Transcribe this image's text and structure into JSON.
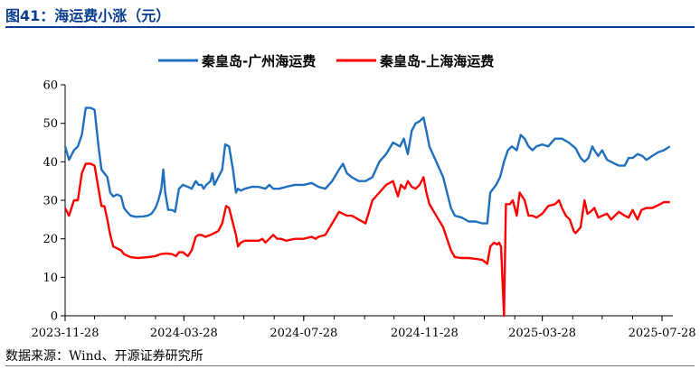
{
  "figure": {
    "title": "图41：海运费小涨（元）",
    "source": "数据来源：Wind、开源证券研究所"
  },
  "chart_data": {
    "type": "line",
    "xticks": [
      "2023-11-28",
      "2024-03-28",
      "2024-07-28",
      "2024-11-28",
      "2025-03-28",
      "2025-07-28"
    ],
    "x_range": [
      "2023-11-28",
      "2025-08-08"
    ],
    "ylim": [
      0,
      60
    ],
    "yticks": [
      "0",
      "10",
      "20",
      "30",
      "40",
      "50",
      "60"
    ],
    "grid": false,
    "legend_position": "top",
    "series": [
      {
        "name": "秦皇岛-广州海运费",
        "color": "#1f6fbf",
        "points": [
          [
            "2023-11-28",
            44
          ],
          [
            "2023-12-02",
            40.5
          ],
          [
            "2023-12-07",
            43
          ],
          [
            "2023-12-11",
            44
          ],
          [
            "2023-12-15",
            47
          ],
          [
            "2023-12-19",
            54
          ],
          [
            "2023-12-24",
            54
          ],
          [
            "2023-12-28",
            53.5
          ],
          [
            "2024-01-01",
            44
          ],
          [
            "2024-01-04",
            38
          ],
          [
            "2024-01-07",
            37
          ],
          [
            "2024-01-10",
            36
          ],
          [
            "2024-01-13",
            32
          ],
          [
            "2024-01-16",
            31
          ],
          [
            "2024-01-20",
            31.5
          ],
          [
            "2024-01-24",
            31
          ],
          [
            "2024-01-27",
            28
          ],
          [
            "2024-01-30",
            27
          ],
          [
            "2024-02-03",
            26
          ],
          [
            "2024-02-08",
            25.7
          ],
          [
            "2024-02-15",
            25.8
          ],
          [
            "2024-02-20",
            26
          ],
          [
            "2024-02-24",
            26.5
          ],
          [
            "2024-02-28",
            28
          ],
          [
            "2024-03-02",
            30
          ],
          [
            "2024-03-05",
            33
          ],
          [
            "2024-03-07",
            38
          ],
          [
            "2024-03-09",
            32
          ],
          [
            "2024-03-12",
            27.5
          ],
          [
            "2024-03-16",
            27.5
          ],
          [
            "2024-03-19",
            27
          ],
          [
            "2024-03-23",
            33
          ],
          [
            "2024-03-27",
            34
          ],
          [
            "2024-04-01",
            33.5
          ],
          [
            "2024-04-05",
            33
          ],
          [
            "2024-04-09",
            35
          ],
          [
            "2024-04-12",
            34
          ],
          [
            "2024-04-15",
            34
          ],
          [
            "2024-04-17",
            33
          ],
          [
            "2024-04-20",
            34
          ],
          [
            "2024-04-24",
            35
          ],
          [
            "2024-04-26",
            37
          ],
          [
            "2024-04-28",
            34
          ],
          [
            "2024-05-02",
            36
          ],
          [
            "2024-05-06",
            38
          ],
          [
            "2024-05-09",
            44.5
          ],
          [
            "2024-05-13",
            44
          ],
          [
            "2024-05-17",
            38
          ],
          [
            "2024-05-20",
            32
          ],
          [
            "2024-05-22",
            33
          ],
          [
            "2024-05-25",
            32.5
          ],
          [
            "2024-05-29",
            33
          ],
          [
            "2024-06-05",
            33.5
          ],
          [
            "2024-06-12",
            33.5
          ],
          [
            "2024-06-19",
            33
          ],
          [
            "2024-06-23",
            34
          ],
          [
            "2024-06-27",
            33
          ],
          [
            "2024-07-03",
            33
          ],
          [
            "2024-07-10",
            33.5
          ],
          [
            "2024-07-19",
            34
          ],
          [
            "2024-07-28",
            34
          ],
          [
            "2024-08-05",
            34.5
          ],
          [
            "2024-08-12",
            33.5
          ],
          [
            "2024-08-19",
            33
          ],
          [
            "2024-08-26",
            35
          ],
          [
            "2024-09-02",
            38
          ],
          [
            "2024-09-06",
            39.5
          ],
          [
            "2024-09-10",
            37
          ],
          [
            "2024-09-15",
            36
          ],
          [
            "2024-09-22",
            35
          ],
          [
            "2024-09-29",
            35
          ],
          [
            "2024-10-06",
            36
          ],
          [
            "2024-10-13",
            40
          ],
          [
            "2024-10-20",
            42
          ],
          [
            "2024-10-27",
            45
          ],
          [
            "2024-11-03",
            44
          ],
          [
            "2024-11-07",
            46
          ],
          [
            "2024-11-11",
            42
          ],
          [
            "2024-11-15",
            48
          ],
          [
            "2024-11-19",
            50
          ],
          [
            "2024-11-23",
            50.5
          ],
          [
            "2024-11-27",
            51.5
          ],
          [
            "2024-11-30",
            48
          ],
          [
            "2024-12-03",
            44
          ],
          [
            "2024-12-10",
            40
          ],
          [
            "2024-12-17",
            36
          ],
          [
            "2024-12-21",
            32
          ],
          [
            "2024-12-25",
            28
          ],
          [
            "2024-12-29",
            26
          ],
          [
            "2025-01-05",
            25.5
          ],
          [
            "2025-01-12",
            24.5
          ],
          [
            "2025-01-19",
            24.5
          ],
          [
            "2025-01-26",
            24
          ],
          [
            "2025-01-31",
            24
          ],
          [
            "2025-02-03",
            32
          ],
          [
            "2025-02-09",
            34
          ],
          [
            "2025-02-13",
            36
          ],
          [
            "2025-02-17",
            40
          ],
          [
            "2025-02-21",
            43
          ],
          [
            "2025-02-25",
            44
          ],
          [
            "2025-03-02",
            43
          ],
          [
            "2025-03-06",
            47
          ],
          [
            "2025-03-10",
            46
          ],
          [
            "2025-03-14",
            44
          ],
          [
            "2025-03-18",
            43
          ],
          [
            "2025-03-22",
            44
          ],
          [
            "2025-03-28",
            44.5
          ],
          [
            "2025-04-03",
            44
          ],
          [
            "2025-04-10",
            46
          ],
          [
            "2025-04-17",
            46
          ],
          [
            "2025-04-24",
            45
          ],
          [
            "2025-05-01",
            43.5
          ],
          [
            "2025-05-06",
            41
          ],
          [
            "2025-05-10",
            40
          ],
          [
            "2025-05-14",
            41
          ],
          [
            "2025-05-18",
            44
          ],
          [
            "2025-05-20",
            43
          ],
          [
            "2025-05-24",
            41.5
          ],
          [
            "2025-05-28",
            43
          ],
          [
            "2025-06-02",
            40.5
          ],
          [
            "2025-06-06",
            40
          ],
          [
            "2025-06-10",
            39.5
          ],
          [
            "2025-06-14",
            39
          ],
          [
            "2025-06-20",
            39
          ],
          [
            "2025-06-24",
            41
          ],
          [
            "2025-06-28",
            41
          ],
          [
            "2025-07-03",
            42
          ],
          [
            "2025-07-08",
            41.5
          ],
          [
            "2025-07-12",
            40.5
          ],
          [
            "2025-07-18",
            41.5
          ],
          [
            "2025-07-24",
            42.5
          ],
          [
            "2025-07-30",
            43
          ],
          [
            "2025-08-05",
            44
          ]
        ]
      },
      {
        "name": "秦皇岛-上海海运费",
        "color": "#ff0000",
        "points": [
          [
            "2023-11-28",
            28
          ],
          [
            "2023-12-02",
            26
          ],
          [
            "2023-12-07",
            30
          ],
          [
            "2023-12-11",
            30
          ],
          [
            "2023-12-15",
            37
          ],
          [
            "2023-12-19",
            39.5
          ],
          [
            "2023-12-24",
            39.5
          ],
          [
            "2023-12-28",
            39
          ],
          [
            "2024-01-01",
            33
          ],
          [
            "2024-01-04",
            28.5
          ],
          [
            "2024-01-07",
            28.5
          ],
          [
            "2024-01-10",
            25
          ],
          [
            "2024-01-13",
            21
          ],
          [
            "2024-01-16",
            18
          ],
          [
            "2024-01-20",
            17.5
          ],
          [
            "2024-01-24",
            17
          ],
          [
            "2024-01-27",
            16
          ],
          [
            "2024-02-03",
            15.2
          ],
          [
            "2024-02-10",
            15
          ],
          [
            "2024-02-20",
            15.2
          ],
          [
            "2024-02-28",
            15.5
          ],
          [
            "2024-03-04",
            16
          ],
          [
            "2024-03-10",
            16.2
          ],
          [
            "2024-03-16",
            16
          ],
          [
            "2024-03-20",
            15.5
          ],
          [
            "2024-03-23",
            16.5
          ],
          [
            "2024-03-27",
            16.5
          ],
          [
            "2024-04-01",
            15.5
          ],
          [
            "2024-04-05",
            17
          ],
          [
            "2024-04-09",
            20.5
          ],
          [
            "2024-04-12",
            21
          ],
          [
            "2024-04-15",
            21
          ],
          [
            "2024-04-19",
            20.5
          ],
          [
            "2024-04-24",
            21
          ],
          [
            "2024-04-28",
            21.5
          ],
          [
            "2024-05-02",
            22
          ],
          [
            "2024-05-06",
            24
          ],
          [
            "2024-05-10",
            28.5
          ],
          [
            "2024-05-13",
            28
          ],
          [
            "2024-05-17",
            24
          ],
          [
            "2024-05-20",
            21
          ],
          [
            "2024-05-22",
            18
          ],
          [
            "2024-05-25",
            19
          ],
          [
            "2024-05-29",
            19.5
          ],
          [
            "2024-06-05",
            19.5
          ],
          [
            "2024-06-12",
            19.5
          ],
          [
            "2024-06-16",
            20
          ],
          [
            "2024-06-19",
            19
          ],
          [
            "2024-06-23",
            20
          ],
          [
            "2024-06-27",
            21
          ],
          [
            "2024-07-01",
            20
          ],
          [
            "2024-07-05",
            20
          ],
          [
            "2024-07-10",
            19.5
          ],
          [
            "2024-07-19",
            20
          ],
          [
            "2024-07-28",
            20
          ],
          [
            "2024-08-05",
            20.5
          ],
          [
            "2024-08-09",
            20
          ],
          [
            "2024-08-12",
            20.5
          ],
          [
            "2024-08-19",
            21
          ],
          [
            "2024-08-26",
            24
          ],
          [
            "2024-09-02",
            27
          ],
          [
            "2024-09-06",
            26.5
          ],
          [
            "2024-09-10",
            26
          ],
          [
            "2024-09-15",
            26
          ],
          [
            "2024-09-22",
            25
          ],
          [
            "2024-09-29",
            24
          ],
          [
            "2024-10-06",
            30
          ],
          [
            "2024-10-13",
            32
          ],
          [
            "2024-10-20",
            34
          ],
          [
            "2024-10-27",
            35
          ],
          [
            "2024-11-01",
            31
          ],
          [
            "2024-11-04",
            34
          ],
          [
            "2024-11-08",
            33
          ],
          [
            "2024-11-11",
            35
          ],
          [
            "2024-11-15",
            33.5
          ],
          [
            "2024-11-19",
            33
          ],
          [
            "2024-11-23",
            34
          ],
          [
            "2024-11-27",
            36
          ],
          [
            "2024-11-30",
            32
          ],
          [
            "2024-12-03",
            29
          ],
          [
            "2024-12-10",
            26
          ],
          [
            "2024-12-17",
            23
          ],
          [
            "2024-12-21",
            20
          ],
          [
            "2024-12-25",
            17
          ],
          [
            "2024-12-29",
            15.2
          ],
          [
            "2025-01-05",
            15
          ],
          [
            "2025-01-12",
            15
          ],
          [
            "2025-01-19",
            14.8
          ],
          [
            "2025-01-26",
            14.5
          ],
          [
            "2025-01-31",
            13.5
          ],
          [
            "2025-02-03",
            18
          ],
          [
            "2025-02-07",
            19
          ],
          [
            "2025-02-10",
            18.5
          ],
          [
            "2025-02-12",
            19
          ],
          [
            "2025-02-14",
            18
          ],
          [
            "2025-02-17",
            0
          ],
          [
            "2025-02-19",
            29
          ],
          [
            "2025-02-23",
            29
          ],
          [
            "2025-02-26",
            30
          ],
          [
            "2025-03-02",
            26
          ],
          [
            "2025-03-05",
            32
          ],
          [
            "2025-03-10",
            30
          ],
          [
            "2025-03-14",
            26
          ],
          [
            "2025-03-18",
            26
          ],
          [
            "2025-03-22",
            25.5
          ],
          [
            "2025-03-28",
            26.5
          ],
          [
            "2025-04-03",
            28.5
          ],
          [
            "2025-04-10",
            29
          ],
          [
            "2025-04-14",
            30
          ],
          [
            "2025-04-17",
            28
          ],
          [
            "2025-04-21",
            26
          ],
          [
            "2025-04-25",
            25
          ],
          [
            "2025-04-29",
            22
          ],
          [
            "2025-05-01",
            21.5
          ],
          [
            "2025-05-06",
            23
          ],
          [
            "2025-05-10",
            30
          ],
          [
            "2025-05-13",
            26.5
          ],
          [
            "2025-05-16",
            27
          ],
          [
            "2025-05-20",
            28
          ],
          [
            "2025-05-24",
            25.5
          ],
          [
            "2025-05-28",
            26
          ],
          [
            "2025-06-02",
            26.5
          ],
          [
            "2025-06-06",
            25
          ],
          [
            "2025-06-10",
            26
          ],
          [
            "2025-06-14",
            27
          ],
          [
            "2025-06-20",
            26
          ],
          [
            "2025-06-24",
            25.5
          ],
          [
            "2025-06-28",
            27.5
          ],
          [
            "2025-07-03",
            25
          ],
          [
            "2025-07-07",
            27.5
          ],
          [
            "2025-07-12",
            28
          ],
          [
            "2025-07-18",
            28
          ],
          [
            "2025-07-22",
            28.5
          ],
          [
            "2025-07-26",
            29
          ],
          [
            "2025-07-30",
            29.5
          ],
          [
            "2025-08-05",
            29.5
          ]
        ]
      }
    ]
  }
}
